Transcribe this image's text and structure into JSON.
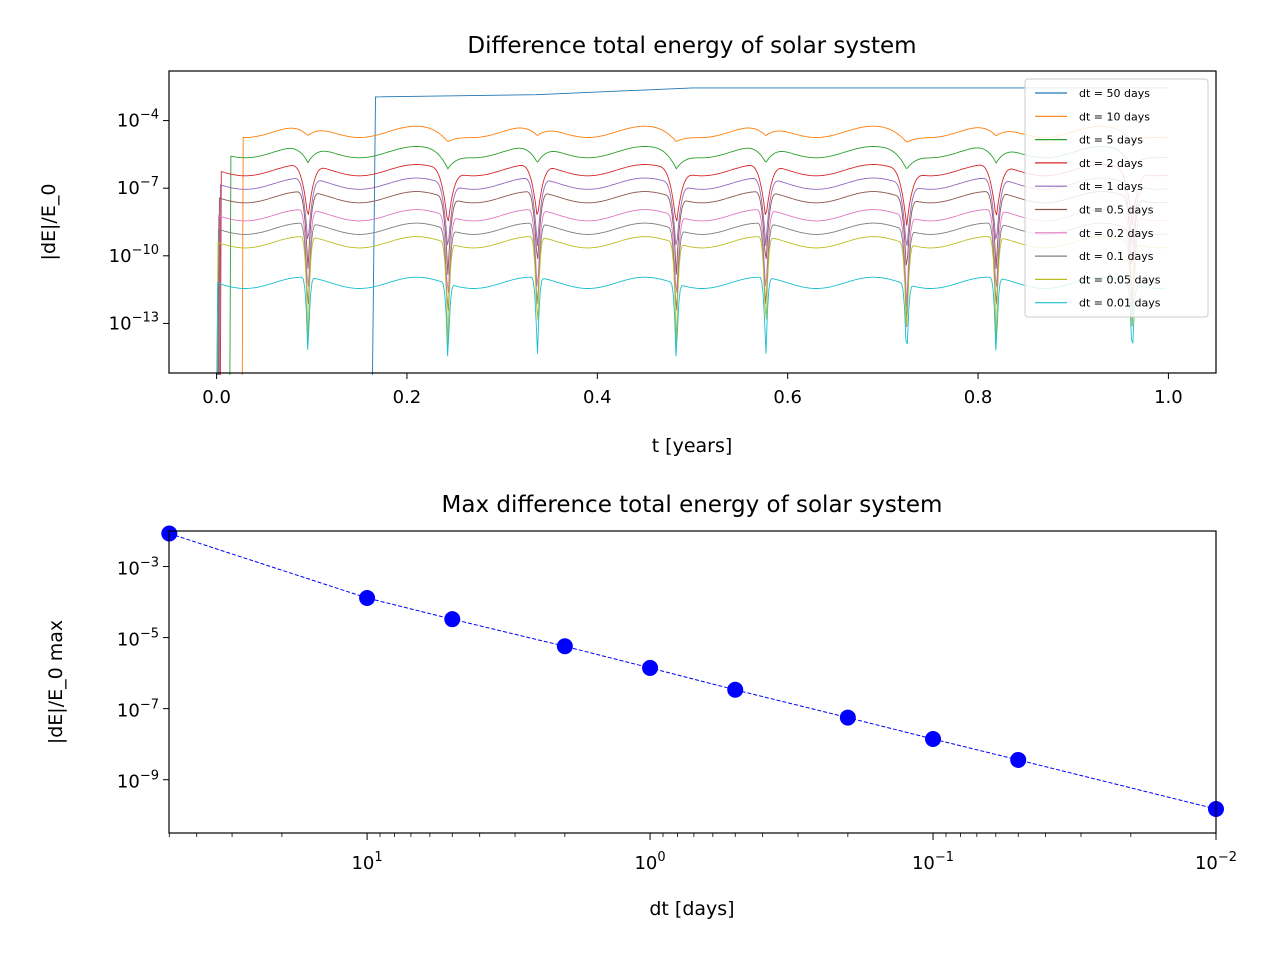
{
  "chart_data": [
    {
      "type": "line",
      "title": "Difference total energy of solar system",
      "xlabel": "t [years]",
      "ylabel": "|dE|/E_0",
      "xscale": "linear",
      "yscale": "log",
      "xlim": [
        -0.05,
        1.05
      ],
      "ylim_log10": [
        -15.2,
        -1.8
      ],
      "xticks": [
        {
          "value": 0.0,
          "label": "0.0"
        },
        {
          "value": 0.2,
          "label": "0.2"
        },
        {
          "value": 0.4,
          "label": "0.4"
        },
        {
          "value": 0.6,
          "label": "0.6"
        },
        {
          "value": 0.8,
          "label": "0.8"
        },
        {
          "value": 1.0,
          "label": "1.0"
        }
      ],
      "yticks": [
        {
          "exp": -4,
          "base": "10",
          "sup": "−4"
        },
        {
          "exp": -7,
          "base": "10",
          "sup": "−7"
        },
        {
          "exp": -10,
          "base": "10",
          "sup": "−10"
        },
        {
          "exp": -13,
          "base": "10",
          "sup": "−13"
        }
      ],
      "legend_position": "top-right",
      "dips": [
        0.096,
        0.243,
        0.337,
        0.483,
        0.577,
        0.725,
        0.819,
        0.962
      ],
      "series": [
        {
          "name": "dt = 50 days",
          "color": "#1f77b4",
          "dt_years": 0.137,
          "start": 0.167,
          "steps": [
            [
              0.167,
              -2.95
            ],
            [
              0.336,
              -2.85
            ],
            [
              0.5,
              -2.55
            ],
            [
              1.0,
              -2.55
            ]
          ]
        },
        {
          "name": "dt = 10 days",
          "color": "#ff7f0e",
          "dt_years": 0.0274,
          "start": 0.027,
          "level": -4.5,
          "depth": 0.4,
          "width": 0.035
        },
        {
          "name": "dt = 5 days",
          "color": "#2ca02c",
          "dt_years": 0.0137,
          "start": 0.014,
          "level": -5.4,
          "depth": 0.7,
          "width": 0.03
        },
        {
          "name": "dt = 2 days",
          "color": "#d62728",
          "dt_years": 0.0055,
          "start": 0.004,
          "level": -6.2,
          "depth": 2.4,
          "width": 0.02
        },
        {
          "name": "dt = 1 days",
          "color": "#9467bd",
          "dt_years": 0.0027,
          "start": 0.003,
          "level": -6.8,
          "depth": 3.0,
          "width": 0.015
        },
        {
          "name": "dt = 0.5 days",
          "color": "#8c564b",
          "dt_years": 0.0014,
          "start": 0.002,
          "level": -7.4,
          "depth": 3.4,
          "width": 0.012
        },
        {
          "name": "dt = 0.2 days",
          "color": "#e377c2",
          "dt_years": 0.0005,
          "start": 0.001,
          "level": -8.2,
          "depth": 4.0,
          "width": 0.01
        },
        {
          "name": "dt = 0.1 days",
          "color": "#7f7f7f",
          "dt_years": 0.0003,
          "start": 0.001,
          "level": -8.8,
          "depth": 4.3,
          "width": 0.009
        },
        {
          "name": "dt = 0.05 days",
          "color": "#bcbd22",
          "dt_years": 0.0001,
          "start": 0.0005,
          "level": -9.4,
          "depth": 4.5,
          "width": 0.008
        },
        {
          "name": "dt = 0.01 days",
          "color": "#17becf",
          "dt_years": 3e-05,
          "start": 0.0002,
          "level": -11.2,
          "depth": 3.7,
          "width": 0.007
        }
      ]
    },
    {
      "type": "line",
      "title": "Max difference total energy of solar system",
      "xlabel": "dt [days]",
      "ylabel": "|dE|/E_0 max",
      "xscale": "log",
      "yscale": "log",
      "x_inverted": true,
      "xlim_log10": [
        1.7,
        -2.0
      ],
      "ylim_log10": [
        -10.5,
        -2.0
      ],
      "xticks": [
        {
          "exp": 1,
          "base": "10",
          "sup": "1"
        },
        {
          "exp": 0,
          "base": "10",
          "sup": "0"
        },
        {
          "exp": -1,
          "base": "10",
          "sup": "−1"
        },
        {
          "exp": -2,
          "base": "10",
          "sup": "−2"
        }
      ],
      "yticks": [
        {
          "exp": -3,
          "base": "10",
          "sup": "−3"
        },
        {
          "exp": -5,
          "base": "10",
          "sup": "−5"
        },
        {
          "exp": -7,
          "base": "10",
          "sup": "−7"
        },
        {
          "exp": -9,
          "base": "10",
          "sup": "−9"
        }
      ],
      "marker_color": "#0000ff",
      "line_style": "dashed",
      "x": [
        50,
        10,
        5,
        2,
        1,
        0.5,
        0.2,
        0.1,
        0.05,
        0.01
      ],
      "y": [
        0.0085,
        0.00013,
        3.3e-05,
        5.7e-06,
        1.4e-06,
        3.4e-07,
        5.6e-08,
        1.4e-08,
        3.6e-09,
        1.5e-10
      ]
    }
  ]
}
